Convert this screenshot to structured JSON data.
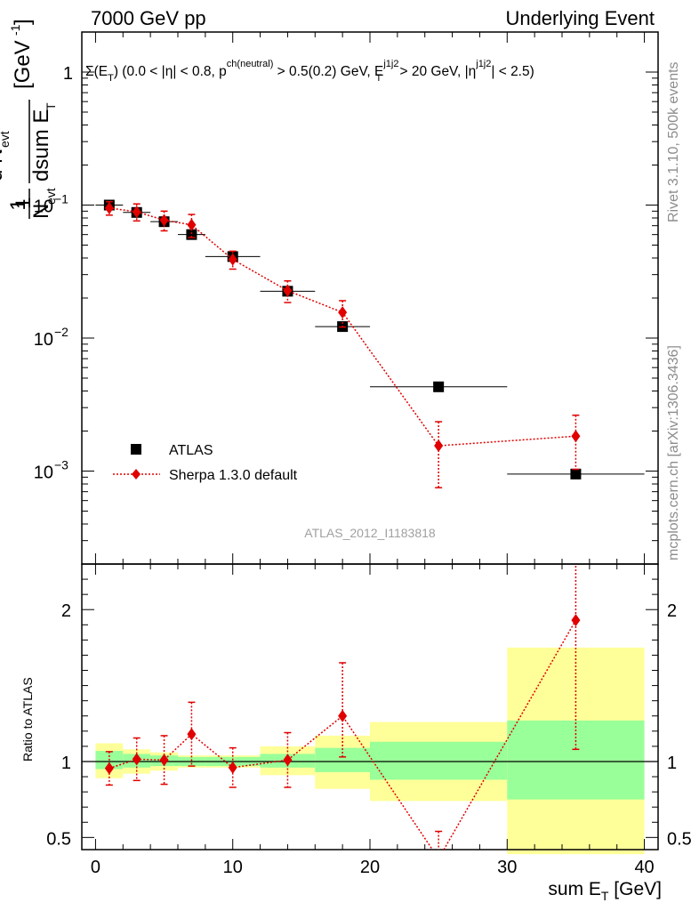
{
  "header": {
    "left": "7000 GeV pp",
    "right": "Underlying Event"
  },
  "side_labels": {
    "rivet": "Rivet 3.1.10,  500k events",
    "mcplots": "mcplots.cern.ch [arXiv:1306.3436]"
  },
  "plot_label": {
    "sigma": "Σ(E",
    "sub_t": "T",
    "p1": ") (0.0 < |η| < 0.8, p",
    "sup_ch": "ch(neutral)",
    "p2": " > 0.5(0.2) GeV, E",
    "sup_j1": "j1j2",
    "sub_t2": "T",
    "p3": " > 20 GeV, |η",
    "sup_j2": "j1j2",
    "p4": "| < 2.5)"
  },
  "analysis_id": "ATLAS_2012_I1183818",
  "y_axis_label": {
    "one": "1",
    "n": "N",
    "n_sub": "evt",
    "dn": "d N",
    "dn_sub": "evt",
    "dsum": "dsum E",
    "dsum_sub": "T",
    "unit": "[GeV",
    "unit_sup": "-1",
    "unit_close": "]"
  },
  "ratio_ylabel": "Ratio to ATLAS",
  "x_axis_label": {
    "main": "sum E",
    "sub": "T",
    "unit": " [GeV]"
  },
  "legend": {
    "data": "ATLAS",
    "mc": "Sherpa 1.3.0 default"
  },
  "colors": {
    "data": "#000000",
    "mc": "#e00000",
    "band_inner": "#99ff99",
    "band_outer": "#ffff99",
    "side_text": "#8c8c8c",
    "analysis_text": "#a0a0a0"
  },
  "chart_data": [
    {
      "type": "scatter",
      "panel": "main",
      "yscale": "log",
      "xlim": [
        -1,
        41
      ],
      "ylim": [
        0.0002,
        2.0
      ],
      "ytick_labels": [
        "10^-3",
        "10^-2",
        "10^-1",
        "1"
      ],
      "xtick_labels": [
        "0",
        "10",
        "20",
        "30",
        "40"
      ],
      "legend_position": "bottom-left",
      "series": [
        {
          "name": "ATLAS",
          "x": [
            1,
            3,
            5,
            7,
            10,
            14,
            18,
            25,
            35
          ],
          "xerr": [
            1,
            1,
            1,
            1,
            2,
            2,
            2,
            5,
            5
          ],
          "y": [
            0.1,
            0.088,
            0.075,
            0.06,
            0.041,
            0.0225,
            0.0122,
            0.0043,
            0.00095
          ]
        },
        {
          "name": "Sherpa 1.3.0 default",
          "x": [
            1,
            3,
            5,
            7,
            10,
            14,
            18,
            25,
            35
          ],
          "y": [
            0.095,
            0.089,
            0.077,
            0.071,
            0.039,
            0.0227,
            0.0156,
            0.00155,
            0.00183
          ],
          "yerr_low": [
            0.011,
            0.013,
            0.013,
            0.014,
            0.006,
            0.0042,
            0.0035,
            0.0008,
            0.0008
          ],
          "yerr_high": [
            0.011,
            0.013,
            0.013,
            0.014,
            0.006,
            0.0042,
            0.0035,
            0.0008,
            0.0008
          ]
        }
      ]
    },
    {
      "type": "line",
      "panel": "ratio",
      "xlim": [
        -1,
        41
      ],
      "ylim": [
        0.42,
        2.3
      ],
      "ytick_labels": [
        "0.5",
        "1",
        "2"
      ],
      "xtick_labels": [
        "0",
        "10",
        "20",
        "30",
        "40"
      ],
      "bands": [
        {
          "xlow": 0,
          "xhigh": 2,
          "inner": [
            0.95,
            1.07
          ],
          "outer": [
            0.89,
            1.12
          ]
        },
        {
          "xlow": 2,
          "xhigh": 4,
          "inner": [
            0.96,
            1.05
          ],
          "outer": [
            0.92,
            1.08
          ]
        },
        {
          "xlow": 4,
          "xhigh": 6,
          "inner": [
            0.97,
            1.04
          ],
          "outer": [
            0.94,
            1.06
          ]
        },
        {
          "xlow": 6,
          "xhigh": 8,
          "inner": [
            0.97,
            1.03
          ],
          "outer": [
            0.96,
            1.04
          ]
        },
        {
          "xlow": 8,
          "xhigh": 12,
          "inner": [
            0.97,
            1.03
          ],
          "outer": [
            0.96,
            1.04
          ]
        },
        {
          "xlow": 12,
          "xhigh": 16,
          "inner": [
            0.96,
            1.05
          ],
          "outer": [
            0.91,
            1.1
          ]
        },
        {
          "xlow": 16,
          "xhigh": 20,
          "inner": [
            0.93,
            1.09
          ],
          "outer": [
            0.82,
            1.17
          ]
        },
        {
          "xlow": 20,
          "xhigh": 30,
          "inner": [
            0.88,
            1.13
          ],
          "outer": [
            0.74,
            1.26
          ]
        },
        {
          "xlow": 30,
          "xhigh": 40,
          "inner": [
            0.75,
            1.27
          ],
          "outer": [
            0.39,
            1.75
          ]
        }
      ],
      "series": [
        {
          "name": "Sherpa 1.3.0 default",
          "x": [
            1,
            3,
            5,
            7,
            10,
            14,
            18,
            25,
            35
          ],
          "y": [
            0.955,
            1.015,
            1.01,
            1.18,
            0.96,
            1.01,
            1.3,
            0.36,
            1.93
          ],
          "yerr_low": [
            0.11,
            0.14,
            0.16,
            0.21,
            0.13,
            0.18,
            0.27,
            0.18,
            0.85
          ],
          "yerr_high": [
            0.11,
            0.14,
            0.16,
            0.21,
            0.13,
            0.18,
            0.35,
            0.18,
            0.85
          ]
        }
      ]
    }
  ]
}
